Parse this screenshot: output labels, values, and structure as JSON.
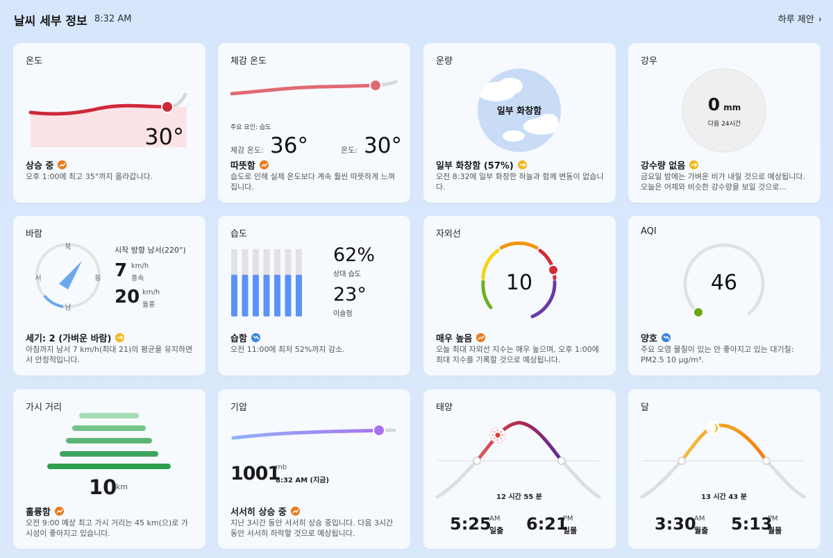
{
  "header": {
    "title": "날씨 세부 정보",
    "time": "8:32 AM",
    "link": "하루 제안"
  },
  "cards": {
    "temp": {
      "title": "온도",
      "value": "30°",
      "status": "상승 중",
      "desc": "오후 1:00에 최고 35°까지 올라갑니다."
    },
    "feels": {
      "title": "체감 온도",
      "factor": "주요 요인: 습도",
      "feels_label": "체감 온도:",
      "feels_value": "36°",
      "temp_label": "온도:",
      "temp_value": "30°",
      "status": "따뜻함",
      "desc": "습도로 인해 실제 온도보다 계속 훨씬 따뜻하게 느껴집니다."
    },
    "cloud": {
      "title": "운량",
      "label": "일부 화창함",
      "status": "일부 화창함 (57%)",
      "desc": "오전 8:32에 일부 화창한 하늘과 함께 변동이 없습니다."
    },
    "rain": {
      "title": "강우",
      "amount": "0",
      "unit": "mm",
      "period": "다음 24시간",
      "status": "강수량 없음",
      "desc": "금요일 밤에는 가벼운 비가 내릴 것으로 예상됩니다. 오늘은 어제와 비슷한 강수량을 보일 것으로..."
    },
    "wind": {
      "title": "바람",
      "dir_n": "북",
      "dir_s": "남",
      "dir_e": "동",
      "dir_w": "서",
      "direction": "시작 방향 남서(220°)",
      "speed": "7",
      "speed_unit": "km/h",
      "speed_label": "풍속",
      "gust": "20",
      "gust_unit": "km/h",
      "gust_label": "돌풍",
      "status": "세기: 2 (가벼운 바람)",
      "desc": "아침까지 남서 7 km/h(최대 21)의 평균을 유지하면서 안정적입니다."
    },
    "humidity": {
      "title": "습도",
      "humidity": "62%",
      "humidity_label": "상대 습도",
      "dew": "23°",
      "dew_label": "이슬점",
      "status": "습함",
      "desc": "오전 11:00에 최저 52%까지 감소.",
      "level": 0.62
    },
    "uv": {
      "title": "자외선",
      "value": "10",
      "status": "매우 높음",
      "desc": "오늘 최대 자외선 지수는 매우 높으며, 오후 1:00에 최대 지수를 기록할 것으로 예상됩니다."
    },
    "aqi": {
      "title": "AQI",
      "value": "46",
      "status": "양호",
      "desc": "주요 오염 물질이 있는 안 좋아지고 있는 대기질: PM2.5 10 μg/m³."
    },
    "visibility": {
      "title": "가시 거리",
      "value": "10",
      "unit": "km",
      "status": "훌륭함",
      "desc": "오전 9:00 예상 최고 가시 거리는 45 km(으)로 가시성이 좋아지고 있습니다."
    },
    "pressure": {
      "title": "기압",
      "value": "1001",
      "unit": "mb",
      "time": "8:32 AM (지금)",
      "status": "서서히 상승 중",
      "desc": "지난 3시간 동안 서서히 상승 중입니다. 다음 3시간 동안 서서히 하락할 것으로 예상됩니다."
    },
    "sun": {
      "title": "태양",
      "duration": "12 시간 55 분",
      "rise": "5:25",
      "rise_ampm": "AM",
      "rise_label": "일출",
      "set": "6:21",
      "set_ampm": "PM",
      "set_label": "일몰"
    },
    "moon": {
      "title": "달",
      "duration": "13 시간 43 분",
      "rise": "3:30",
      "rise_ampm": "AM",
      "rise_label": "월출",
      "set": "5:13",
      "set_ampm": "PM",
      "set_label": "월몰"
    }
  },
  "colors": {
    "temp": "#d0283a",
    "feels": "#e06a72",
    "aqi_good": "#6aa615",
    "uv_high": "#e8541e",
    "pressure": "#a772f0",
    "humidity_bar": "#5b92f7",
    "visibility": "#2e9e4f"
  }
}
